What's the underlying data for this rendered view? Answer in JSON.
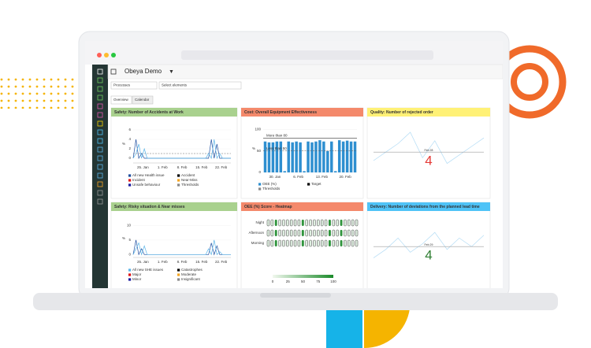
{
  "app": {
    "title": "Obeya Demo",
    "processes": "Processes",
    "select": "Select elements",
    "tabs": [
      "Overview",
      "Calendar"
    ]
  },
  "panels": [
    {
      "type": "line",
      "title": "Safety: Number of Accidents at Work",
      "color": "#a9d18e",
      "y_unit": "%",
      "ylim": [
        -1,
        7
      ],
      "yticks": [
        0,
        2,
        4,
        6
      ],
      "xticks": [
        "25. Jan",
        "1. Feb",
        "8. Feb",
        "15. Feb",
        "22. Feb"
      ],
      "threshold": 1,
      "series": [
        {
          "color": "#1f4fa0",
          "values": [
            0,
            4,
            0,
            1,
            0,
            0,
            0,
            0,
            0,
            0,
            0,
            0,
            0,
            0,
            0,
            0,
            0,
            0,
            0,
            0,
            0,
            0,
            0,
            0,
            0,
            0,
            0,
            0,
            4,
            0,
            3,
            0,
            0,
            0,
            0,
            0
          ]
        },
        {
          "color": "#5ab4e8",
          "values": [
            0,
            1,
            3,
            0,
            2,
            0,
            0,
            0,
            0,
            0,
            0,
            0,
            0,
            0,
            0,
            0,
            0,
            0,
            0,
            0,
            0,
            0,
            0,
            0,
            0,
            0,
            0,
            1,
            0,
            4,
            0,
            1,
            0,
            0,
            0,
            0
          ]
        }
      ],
      "legend": [
        {
          "name": "All new Health issue",
          "color": "#1f4fa0"
        },
        {
          "name": "Accident",
          "color": "#000000"
        },
        {
          "name": "Incident",
          "color": "#e01010"
        },
        {
          "name": "Near-Miss",
          "color": "#f5a623"
        },
        {
          "name": "Unsafe behaviour",
          "color": "#1a1aa0"
        },
        {
          "name": "Thresholds",
          "color": "#888888"
        }
      ]
    },
    {
      "type": "bar",
      "title": "Cost: Overall Equipment Effectiveness",
      "color": "#f4896b",
      "y_unit": "%",
      "ylim": [
        0,
        110
      ],
      "yticks": [
        0,
        50,
        100
      ],
      "xticks": [
        "30. Jan",
        "6. Feb",
        "13. Feb",
        "20. Feb"
      ],
      "target": 80,
      "threshold": 50,
      "annotations": [
        "More than 80",
        "Less than 50"
      ],
      "bar_color": "#2e8fd0",
      "values": [
        72,
        70,
        70,
        72,
        72,
        3,
        72,
        70,
        72,
        70,
        3,
        72,
        70,
        72,
        75,
        72,
        50,
        72,
        3,
        75,
        72,
        74,
        72,
        72
      ],
      "legend": [
        {
          "name": "OEE (%)",
          "color": "#2e8fd0"
        },
        {
          "name": "Target",
          "color": "#000000"
        },
        {
          "name": "Thresholds",
          "color": "#888888"
        }
      ]
    },
    {
      "type": "kpi",
      "title": "Quality: Number of rejected order",
      "color": "#fff176",
      "date": "Feb 28",
      "value": 4,
      "value_color": "#e53935",
      "ylim": [
        0,
        35
      ],
      "series": [
        {
          "color": "#b3dcf5",
          "values": [
            10,
            16,
            22,
            30,
            12,
            24,
            8,
            14,
            20,
            26
          ]
        },
        {
          "color": "#9e9e9e",
          "values": [
            16,
            16,
            16,
            16,
            16,
            16,
            16,
            16,
            16,
            16
          ]
        }
      ]
    },
    {
      "type": "line",
      "title": "Safety: Risky situation & Near misses",
      "color": "#a9d18e",
      "y_unit": "%",
      "ylim": [
        -1,
        12
      ],
      "yticks": [
        0,
        5,
        10
      ],
      "xticks": [
        "25. Jan",
        "1. Feb",
        "8. Feb",
        "15. Feb",
        "22. Feb"
      ],
      "series": [
        {
          "color": "#1f4fa0",
          "values": [
            0,
            5,
            0,
            2,
            0,
            0,
            0,
            0,
            0,
            0,
            0,
            0,
            0,
            0,
            0,
            0,
            0,
            0,
            0,
            0,
            0,
            0,
            0,
            0,
            0,
            0,
            0,
            0,
            4,
            0,
            3,
            0,
            0,
            0,
            0,
            0
          ]
        },
        {
          "color": "#5ab4e8",
          "values": [
            0,
            2,
            4,
            0,
            3,
            0,
            0,
            0,
            0,
            0,
            0,
            0,
            0,
            0,
            0,
            0,
            0,
            0,
            0,
            0,
            0,
            0,
            0,
            0,
            0,
            0,
            0,
            2,
            0,
            5,
            0,
            1,
            0,
            0,
            0,
            0
          ]
        }
      ],
      "legend": [
        {
          "name": "All new SHE issues",
          "color": "#5ab4e8"
        },
        {
          "name": "Catastrophes",
          "color": "#000000"
        },
        {
          "name": "Major",
          "color": "#e01010"
        },
        {
          "name": "Moderate",
          "color": "#f5a623"
        },
        {
          "name": "Minor",
          "color": "#1a1aa0"
        },
        {
          "name": "Insignificant",
          "color": "#888888"
        }
      ]
    },
    {
      "type": "heatmap",
      "title": "OEE (%) Score - Heatmap",
      "color": "#f4896b",
      "rows": [
        "Night",
        "Afternoon",
        "Morning"
      ],
      "scale_ticks": [
        0,
        25,
        50,
        75,
        100
      ],
      "values": [
        [
          10,
          10,
          90,
          10,
          10,
          10,
          10,
          10,
          10,
          90,
          10,
          10,
          10,
          10,
          10,
          10,
          90,
          10,
          10,
          90,
          10,
          10,
          10,
          10
        ],
        [
          10,
          10,
          90,
          10,
          10,
          10,
          10,
          10,
          10,
          90,
          10,
          10,
          10,
          10,
          10,
          10,
          90,
          10,
          10,
          90,
          10,
          10,
          10,
          10
        ],
        [
          10,
          10,
          90,
          10,
          10,
          10,
          10,
          10,
          10,
          90,
          10,
          10,
          10,
          10,
          10,
          10,
          90,
          10,
          10,
          90,
          10,
          10,
          10,
          10
        ]
      ]
    },
    {
      "type": "kpi",
      "title": "Delivery: Number of deviations from the planned lead time",
      "color": "#4fc3f7",
      "date": "Feb 29",
      "value": 4,
      "value_color": "#2e7d32",
      "ylim": [
        0,
        35
      ],
      "series": [
        {
          "color": "#b3dcf5",
          "values": [
            8,
            14,
            22,
            12,
            18,
            26,
            14,
            22,
            16,
            24
          ]
        },
        {
          "color": "#9e9e9e",
          "values": [
            16,
            16,
            16,
            16,
            16,
            16,
            16,
            16,
            16,
            16
          ]
        }
      ]
    }
  ]
}
